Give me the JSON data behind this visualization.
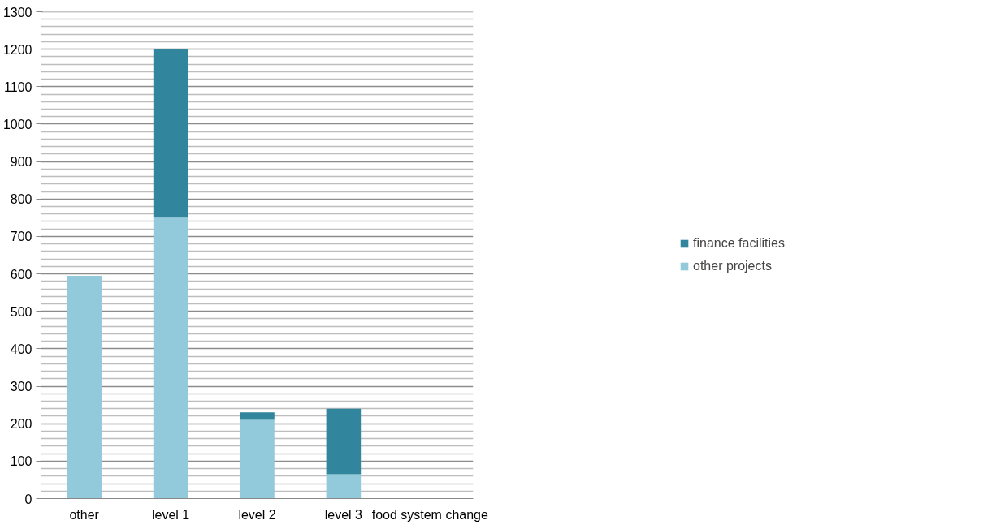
{
  "chart_data": {
    "type": "bar",
    "stacked": true,
    "categories": [
      "other",
      "level 1",
      "level 2",
      "level 3",
      "food system change"
    ],
    "series": [
      {
        "name": "other projects",
        "color": "#93cadb",
        "values": [
          595,
          750,
          210,
          65,
          0
        ]
      },
      {
        "name": "finance facilities",
        "color": "#31859c",
        "values": [
          0,
          450,
          20,
          175,
          0
        ]
      }
    ],
    "ylim": [
      0,
      1300
    ],
    "yticks": [
      0,
      100,
      200,
      300,
      400,
      500,
      600,
      700,
      800,
      900,
      1000,
      1100,
      1200,
      1300
    ],
    "grid": "y",
    "legend": "right"
  }
}
